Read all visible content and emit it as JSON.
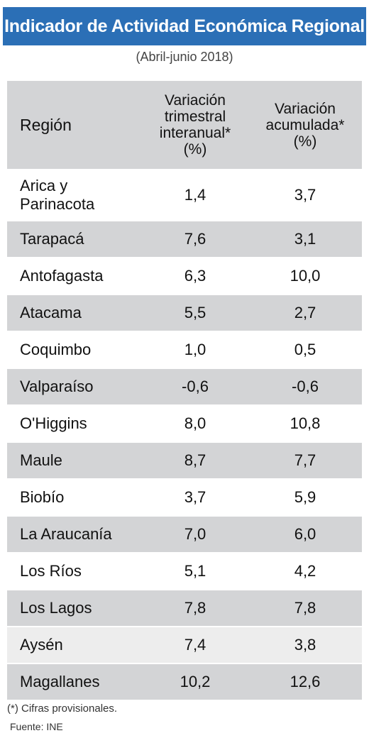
{
  "header": {
    "title": "Indicador de Actividad Económica Regional",
    "subtitle": "(Abril-junio 2018)"
  },
  "table": {
    "col_region": "Región",
    "col1_lines": [
      "Variación",
      "trimestral",
      "interanual*",
      "(%)"
    ],
    "col2_lines": [
      "Variación",
      "acumulada*",
      "(%)"
    ]
  },
  "chart_data": {
    "type": "table",
    "columns": [
      "Región",
      "Variación trimestral interanual* (%)",
      "Variación acumulada* (%)"
    ],
    "rows": [
      {
        "region": "Arica y Parinacota",
        "trimestral": "1,4",
        "acumulada": "3,7"
      },
      {
        "region": "Tarapacá",
        "trimestral": "7,6",
        "acumulada": "3,1"
      },
      {
        "region": "Antofagasta",
        "trimestral": "6,3",
        "acumulada": "10,0"
      },
      {
        "region": "Atacama",
        "trimestral": "5,5",
        "acumulada": "2,7"
      },
      {
        "region": "Coquimbo",
        "trimestral": "1,0",
        "acumulada": "0,5"
      },
      {
        "region": "Valparaíso",
        "trimestral": "-0,6",
        "acumulada": "-0,6"
      },
      {
        "region": "O'Higgins",
        "trimestral": "8,0",
        "acumulada": "10,8"
      },
      {
        "region": "Maule",
        "trimestral": "8,7",
        "acumulada": "7,7"
      },
      {
        "region": "Biobío",
        "trimestral": "3,7",
        "acumulada": "5,9"
      },
      {
        "region": "La Araucanía",
        "trimestral": "7,0",
        "acumulada": "6,0"
      },
      {
        "region": "Los Ríos",
        "trimestral": "5,1",
        "acumulada": "4,2"
      },
      {
        "region": "Los Lagos",
        "trimestral": "7,8",
        "acumulada": "7,8"
      },
      {
        "region": "Aysén",
        "trimestral": "7,4",
        "acumulada": "3,8"
      },
      {
        "region": "Magallanes",
        "trimestral": "10,2",
        "acumulada": "12,6"
      }
    ]
  },
  "footer": {
    "footnote": "(*) Cifras provisionales.",
    "source": "Fuente: INE"
  },
  "colors": {
    "title_bar": "#2b6fb6",
    "row_shade": "#d3d4d6",
    "row_light": "#ededed"
  }
}
